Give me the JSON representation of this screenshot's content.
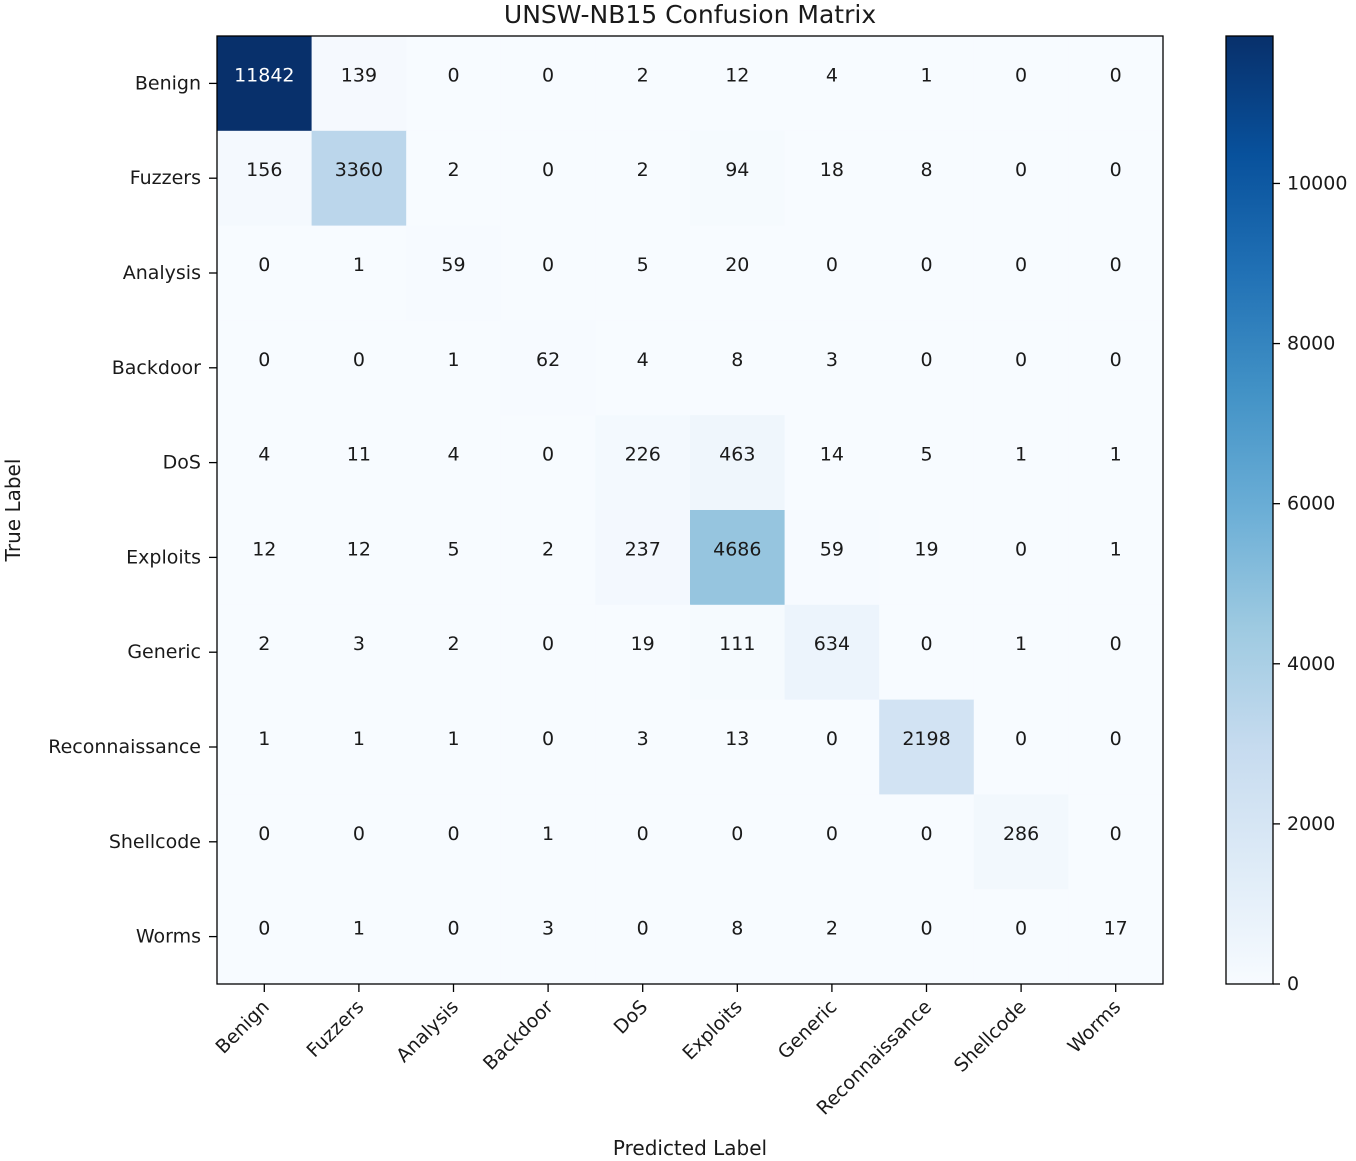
{
  "chart_data": {
    "type": "heatmap",
    "title": "UNSW-NB15 Confusion Matrix",
    "xlabel": "Predicted Label",
    "ylabel": "True Label",
    "x_categories": [
      "Benign",
      "Fuzzers",
      "Analysis",
      "Backdoor",
      "DoS",
      "Exploits",
      "Generic",
      "Reconnaissance",
      "Shellcode",
      "Worms"
    ],
    "y_categories": [
      "Benign",
      "Fuzzers",
      "Analysis",
      "Backdoor",
      "DoS",
      "Exploits",
      "Generic",
      "Reconnaissance",
      "Shellcode",
      "Worms"
    ],
    "values": [
      [
        11842,
        139,
        0,
        0,
        2,
        12,
        4,
        1,
        0,
        0
      ],
      [
        156,
        3360,
        2,
        0,
        2,
        94,
        18,
        8,
        0,
        0
      ],
      [
        0,
        1,
        59,
        0,
        5,
        20,
        0,
        0,
        0,
        0
      ],
      [
        0,
        0,
        1,
        62,
        4,
        8,
        3,
        0,
        0,
        0
      ],
      [
        4,
        11,
        4,
        0,
        226,
        463,
        14,
        5,
        1,
        1
      ],
      [
        12,
        12,
        5,
        2,
        237,
        4686,
        59,
        19,
        0,
        1
      ],
      [
        2,
        3,
        2,
        0,
        19,
        111,
        634,
        0,
        1,
        0
      ],
      [
        1,
        1,
        1,
        0,
        3,
        13,
        0,
        2198,
        0,
        0
      ],
      [
        0,
        0,
        0,
        1,
        0,
        0,
        0,
        0,
        286,
        0
      ],
      [
        0,
        1,
        0,
        3,
        0,
        8,
        2,
        0,
        0,
        17
      ]
    ],
    "colormap": "Blues",
    "vmin": 0,
    "vmax": 11842,
    "colorbar_ticks": [
      0,
      2000,
      4000,
      6000,
      8000,
      10000
    ],
    "colorbar_tick_labels": [
      "0",
      "2000",
      "4000",
      "6000",
      "8000",
      "10000"
    ]
  }
}
